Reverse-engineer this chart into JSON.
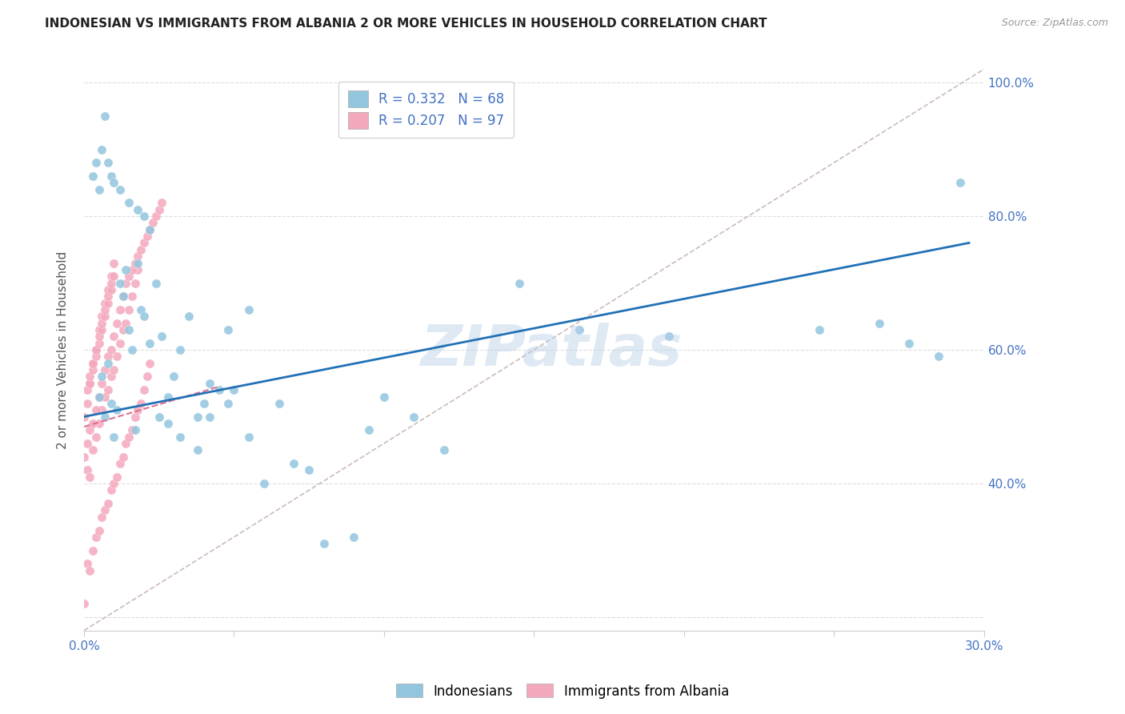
{
  "title": "INDONESIAN VS IMMIGRANTS FROM ALBANIA 2 OR MORE VEHICLES IN HOUSEHOLD CORRELATION CHART",
  "source": "Source: ZipAtlas.com",
  "ylabel_text": "2 or more Vehicles in Household",
  "xlim": [
    0.0,
    0.3
  ],
  "ylim": [
    0.18,
    1.02
  ],
  "y_ticks": [
    0.2,
    0.4,
    0.6,
    0.8,
    1.0
  ],
  "y_tick_labels": [
    "",
    "40.0%",
    "60.0%",
    "80.0%",
    "100.0%"
  ],
  "x_ticks": [
    0.0,
    0.05,
    0.1,
    0.15,
    0.2,
    0.25,
    0.3
  ],
  "x_tick_labels": [
    "0.0%",
    "",
    "",
    "",
    "",
    "",
    "30.0%"
  ],
  "legend_r1": "R = 0.332",
  "legend_n1": "N = 68",
  "legend_r2": "R = 0.207",
  "legend_n2": "N = 97",
  "blue_color": "#92c5de",
  "pink_color": "#f4a8bc",
  "blue_line_color": "#2171b5",
  "pink_line_color": "#e07090",
  "ref_line_color": "#ccbbbb",
  "axis_color": "#4472C4",
  "grid_color": "#dddddd",
  "watermark": "ZIPatlas",
  "blue_trend_x0": 0.0,
  "blue_trend_y0": 0.5,
  "blue_trend_x1": 0.295,
  "blue_trend_y1": 0.76,
  "pink_trend_x0": 0.0,
  "pink_trend_y0": 0.485,
  "pink_trend_x1": 0.045,
  "pink_trend_y1": 0.545,
  "ref_line_x0": 0.0,
  "ref_line_y0": 0.18,
  "ref_line_x1": 0.3,
  "ref_line_y1": 1.02,
  "indo_x": [
    0.005,
    0.006,
    0.007,
    0.008,
    0.009,
    0.01,
    0.011,
    0.012,
    0.013,
    0.014,
    0.015,
    0.016,
    0.017,
    0.018,
    0.019,
    0.02,
    0.022,
    0.024,
    0.026,
    0.028,
    0.03,
    0.032,
    0.035,
    0.038,
    0.04,
    0.042,
    0.045,
    0.048,
    0.05,
    0.055,
    0.06,
    0.065,
    0.07,
    0.075,
    0.08,
    0.09,
    0.095,
    0.1,
    0.11,
    0.12,
    0.003,
    0.004,
    0.005,
    0.006,
    0.007,
    0.008,
    0.009,
    0.01,
    0.012,
    0.015,
    0.018,
    0.02,
    0.022,
    0.025,
    0.028,
    0.032,
    0.038,
    0.042,
    0.048,
    0.055,
    0.145,
    0.165,
    0.195,
    0.245,
    0.265,
    0.275,
    0.285,
    0.292
  ],
  "indo_y": [
    0.53,
    0.56,
    0.5,
    0.58,
    0.52,
    0.47,
    0.51,
    0.7,
    0.68,
    0.72,
    0.63,
    0.6,
    0.48,
    0.73,
    0.66,
    0.65,
    0.61,
    0.7,
    0.62,
    0.53,
    0.56,
    0.6,
    0.65,
    0.5,
    0.52,
    0.55,
    0.54,
    0.63,
    0.54,
    0.66,
    0.4,
    0.52,
    0.43,
    0.42,
    0.31,
    0.32,
    0.48,
    0.53,
    0.5,
    0.45,
    0.86,
    0.88,
    0.84,
    0.9,
    0.95,
    0.88,
    0.86,
    0.85,
    0.84,
    0.82,
    0.81,
    0.8,
    0.78,
    0.5,
    0.49,
    0.47,
    0.45,
    0.5,
    0.52,
    0.47,
    0.7,
    0.63,
    0.62,
    0.63,
    0.64,
    0.61,
    0.59,
    0.85
  ],
  "alb_x": [
    0.0,
    0.001,
    0.001,
    0.002,
    0.002,
    0.002,
    0.003,
    0.003,
    0.003,
    0.004,
    0.004,
    0.004,
    0.005,
    0.005,
    0.005,
    0.006,
    0.006,
    0.006,
    0.007,
    0.007,
    0.007,
    0.008,
    0.008,
    0.008,
    0.009,
    0.009,
    0.009,
    0.01,
    0.01,
    0.01,
    0.011,
    0.011,
    0.012,
    0.012,
    0.013,
    0.013,
    0.014,
    0.014,
    0.015,
    0.015,
    0.016,
    0.016,
    0.017,
    0.017,
    0.018,
    0.018,
    0.019,
    0.02,
    0.021,
    0.022,
    0.0,
    0.001,
    0.001,
    0.002,
    0.002,
    0.003,
    0.003,
    0.004,
    0.004,
    0.005,
    0.005,
    0.006,
    0.006,
    0.007,
    0.007,
    0.008,
    0.008,
    0.009,
    0.009,
    0.01,
    0.0,
    0.001,
    0.002,
    0.003,
    0.004,
    0.005,
    0.006,
    0.007,
    0.008,
    0.009,
    0.01,
    0.011,
    0.012,
    0.013,
    0.014,
    0.015,
    0.016,
    0.017,
    0.018,
    0.019,
    0.02,
    0.021,
    0.022,
    0.023,
    0.024,
    0.025,
    0.026
  ],
  "alb_y": [
    0.22,
    0.28,
    0.42,
    0.27,
    0.41,
    0.55,
    0.3,
    0.45,
    0.58,
    0.32,
    0.47,
    0.6,
    0.33,
    0.49,
    0.63,
    0.35,
    0.51,
    0.65,
    0.36,
    0.53,
    0.67,
    0.37,
    0.54,
    0.69,
    0.39,
    0.56,
    0.71,
    0.4,
    0.57,
    0.73,
    0.41,
    0.59,
    0.43,
    0.61,
    0.44,
    0.63,
    0.46,
    0.64,
    0.47,
    0.66,
    0.48,
    0.68,
    0.5,
    0.7,
    0.51,
    0.72,
    0.52,
    0.54,
    0.56,
    0.58,
    0.5,
    0.52,
    0.54,
    0.55,
    0.56,
    0.57,
    0.58,
    0.59,
    0.6,
    0.61,
    0.62,
    0.63,
    0.64,
    0.65,
    0.66,
    0.67,
    0.68,
    0.69,
    0.7,
    0.71,
    0.44,
    0.46,
    0.48,
    0.49,
    0.51,
    0.53,
    0.55,
    0.57,
    0.59,
    0.6,
    0.62,
    0.64,
    0.66,
    0.68,
    0.7,
    0.71,
    0.72,
    0.73,
    0.74,
    0.75,
    0.76,
    0.77,
    0.78,
    0.79,
    0.8,
    0.81,
    0.82
  ]
}
